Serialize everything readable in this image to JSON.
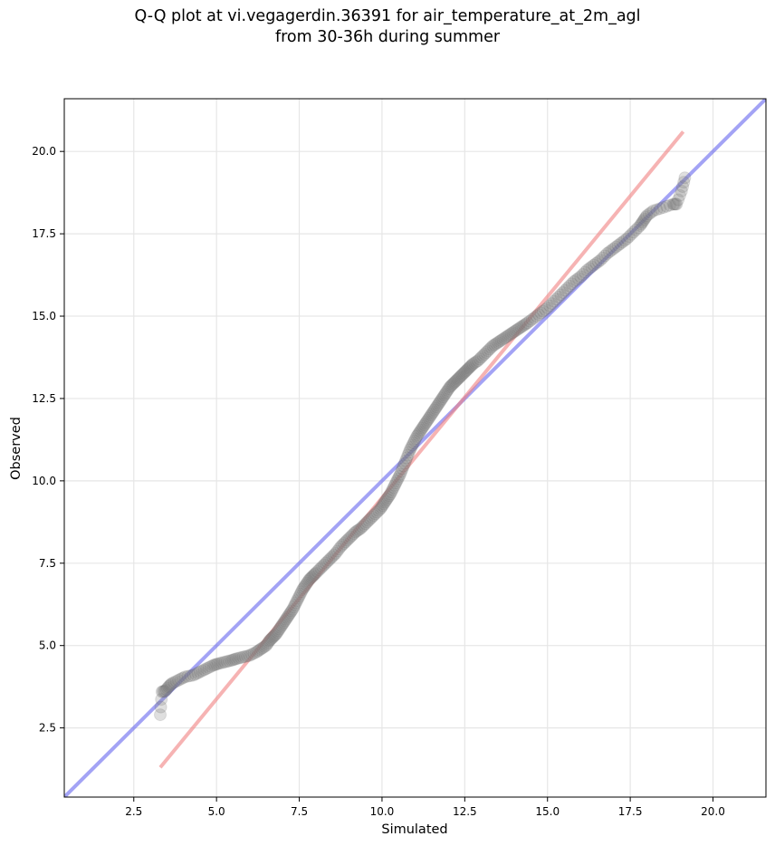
{
  "chart_data": {
    "type": "scatter",
    "title_lines": [
      "Q-Q plot at vi.vegagerdin.36391 for air_temperature_at_2m_agl",
      "from 30-36h during summer"
    ],
    "xlabel": "Simulated",
    "ylabel": "Observed",
    "xlim": [
      0.4,
      21.6
    ],
    "ylim": [
      0.4,
      21.6
    ],
    "xticks": [
      2.5,
      5.0,
      7.5,
      10.0,
      12.5,
      15.0,
      17.5,
      20.0
    ],
    "yticks": [
      2.5,
      5.0,
      7.5,
      10.0,
      12.5,
      15.0,
      17.5,
      20.0
    ],
    "tick_labels": [
      "2.5",
      "5.0",
      "7.5",
      "10.0",
      "12.5",
      "15.0",
      "17.5",
      "20.0"
    ],
    "grid": true,
    "reference_lines": [
      {
        "kind": "identity",
        "color": "#6666ee",
        "x": [
          0.4,
          21.6
        ],
        "y": [
          0.4,
          21.6
        ]
      },
      {
        "kind": "fit",
        "color": "#f08080",
        "x": [
          3.3,
          19.1
        ],
        "y": [
          1.3,
          20.6
        ]
      }
    ],
    "points_x": [
      3.3,
      3.35,
      3.45,
      3.55,
      3.65,
      3.85,
      4.05,
      4.3,
      4.5,
      4.7,
      4.9,
      5.05,
      5.25,
      5.45,
      5.6,
      5.8,
      6.0,
      6.2,
      6.35,
      6.5,
      6.6,
      6.7,
      6.8,
      6.9,
      7.0,
      7.1,
      7.2,
      7.3,
      7.4,
      7.5,
      7.6,
      7.7,
      7.8,
      7.9,
      8.0,
      8.15,
      8.3,
      8.45,
      8.6,
      8.75,
      8.9,
      9.05,
      9.2,
      9.35,
      9.5,
      9.65,
      9.8,
      9.95,
      10.05,
      10.15,
      10.25,
      10.35,
      10.45,
      10.55,
      10.65,
      10.75,
      10.85,
      10.95,
      11.05,
      11.15,
      11.25,
      11.35,
      11.45,
      11.55,
      11.65,
      11.75,
      11.85,
      11.95,
      12.05,
      12.15,
      12.25,
      12.35,
      12.45,
      12.55,
      12.65,
      12.75,
      12.9,
      13.05,
      13.2,
      13.35,
      13.5,
      13.65,
      13.8,
      13.95,
      14.1,
      14.25,
      14.4,
      14.6,
      14.8,
      15.0,
      15.2,
      15.4,
      15.6,
      15.8,
      16.0,
      16.2,
      16.4,
      16.6,
      16.8,
      17.0,
      17.2,
      17.4,
      17.6,
      17.8,
      17.9,
      18.0,
      18.2,
      18.5,
      18.8,
      18.9,
      19.05,
      19.15
    ],
    "points_y": [
      2.9,
      3.6,
      3.62,
      3.75,
      3.85,
      3.95,
      4.05,
      4.1,
      4.2,
      4.3,
      4.4,
      4.45,
      4.5,
      4.55,
      4.6,
      4.65,
      4.7,
      4.8,
      4.9,
      5.0,
      5.15,
      5.25,
      5.35,
      5.5,
      5.65,
      5.8,
      5.95,
      6.1,
      6.3,
      6.5,
      6.7,
      6.85,
      7.0,
      7.1,
      7.2,
      7.35,
      7.5,
      7.65,
      7.8,
      8.0,
      8.15,
      8.3,
      8.45,
      8.55,
      8.7,
      8.85,
      9.0,
      9.15,
      9.3,
      9.45,
      9.6,
      9.8,
      10.0,
      10.2,
      10.45,
      10.7,
      10.95,
      11.15,
      11.35,
      11.5,
      11.65,
      11.8,
      11.95,
      12.1,
      12.25,
      12.4,
      12.55,
      12.7,
      12.85,
      12.95,
      13.05,
      13.15,
      13.25,
      13.35,
      13.45,
      13.55,
      13.65,
      13.8,
      13.95,
      14.1,
      14.2,
      14.3,
      14.4,
      14.5,
      14.6,
      14.7,
      14.8,
      14.95,
      15.1,
      15.25,
      15.45,
      15.65,
      15.85,
      16.05,
      16.2,
      16.4,
      16.55,
      16.7,
      16.9,
      17.05,
      17.2,
      17.35,
      17.55,
      17.75,
      17.9,
      18.05,
      18.2,
      18.3,
      18.4,
      18.4,
      18.8,
      19.2
    ]
  }
}
